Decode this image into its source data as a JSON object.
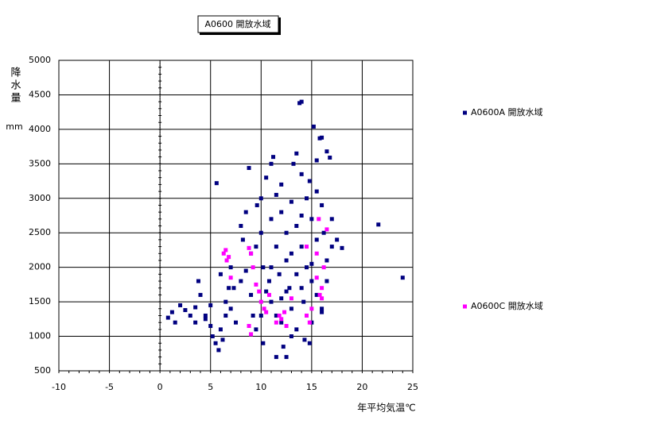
{
  "chart_data": {
    "type": "scatter",
    "title": "A0600 開放水域",
    "x_label": "年平均気温℃",
    "y_label": "降水量",
    "y_unit": "mm",
    "xlim": [
      -10,
      25
    ],
    "ylim": [
      500,
      5000
    ],
    "xticks": [
      -10,
      -5,
      0,
      5,
      10,
      15,
      20,
      25
    ],
    "yticks": [
      500,
      1000,
      1500,
      2000,
      2500,
      3000,
      3500,
      4000,
      4500,
      5000
    ],
    "grid": true,
    "series": [
      {
        "name": "A0600A 開放水域",
        "color": "#000080",
        "x": [
          0.8,
          1.2,
          1.5,
          2.0,
          2.5,
          3,
          3.5,
          3.8,
          4,
          4.5,
          5,
          5.2,
          5.5,
          5.8,
          6,
          6.2,
          6.5,
          5.6,
          6,
          6.5,
          7,
          7.5,
          7.3,
          8,
          8,
          8.2,
          8.5,
          8.8,
          9,
          9,
          9.2,
          9.5,
          9.6,
          10,
          10,
          10.2,
          10.2,
          10.5,
          10.8,
          11,
          11,
          11,
          11.2,
          11.5,
          11.5,
          11.5,
          11.8,
          12,
          12,
          12,
          12.2,
          12.5,
          12.5,
          12.5,
          12.8,
          13,
          13,
          13,
          13.2,
          13.5,
          13.5,
          13.5,
          13.8,
          14,
          14,
          14,
          14,
          14.2,
          14.3,
          14.5,
          14.5,
          14.5,
          14.8,
          15,
          15,
          15,
          15.2,
          15.5,
          15.5,
          15.5,
          15.5,
          15.8,
          16,
          16,
          16,
          16.2,
          16.5,
          16.5,
          16.8,
          17,
          17,
          17.5,
          18,
          21.6,
          24,
          13,
          12.5,
          14,
          10.5,
          11,
          9.5,
          8.5,
          7,
          6.8,
          5,
          4.5,
          3.5,
          16.5,
          15,
          13.5,
          12,
          10,
          11.5,
          14.8,
          16
        ],
        "values": [
          1270,
          1350,
          1200,
          1450,
          1380,
          1300,
          1420,
          1800,
          1600,
          1250,
          1150,
          1000,
          900,
          800,
          1100,
          950,
          1300,
          3220,
          1900,
          1500,
          1400,
          1200,
          1700,
          1800,
          2600,
          2400,
          2800,
          3440,
          2200,
          1600,
          1300,
          1100,
          2900,
          3000,
          2500,
          2000,
          900,
          3300,
          1800,
          3500,
          2700,
          1500,
          3600,
          3050,
          2300,
          700,
          1900,
          2800,
          1200,
          3200,
          850,
          2500,
          2100,
          700,
          1700,
          2950,
          2200,
          1400,
          3500,
          3650,
          2600,
          1100,
          4380,
          4400,
          3350,
          2300,
          1700,
          1500,
          950,
          3000,
          2000,
          1300,
          3250,
          2700,
          1800,
          1200,
          4040,
          3550,
          3100,
          2400,
          1600,
          3870,
          3880,
          2900,
          1400,
          2500,
          3680,
          2100,
          3590,
          2700,
          2300,
          2400,
          2280,
          2620,
          1850,
          1000,
          1650,
          2750,
          1650,
          2000,
          2300,
          1950,
          2000,
          1700,
          1450,
          1300,
          1200,
          1800,
          2050,
          1900,
          1550,
          1300,
          1300,
          900,
          1350
        ]
      },
      {
        "name": "A0600C 開放水域",
        "color": "#ff00ff",
        "x": [
          6.3,
          6.5,
          6.6,
          6.8,
          7,
          8.8,
          9,
          9.2,
          9.5,
          9.8,
          10,
          10.3,
          10.5,
          10.8,
          11.5,
          11.8,
          12,
          12.3,
          8.8,
          9,
          14.5,
          14.8,
          15,
          15.5,
          15.7,
          16,
          16,
          16.2,
          16.5,
          15.8,
          15.5,
          13,
          12.5,
          14.5
        ],
        "values": [
          2200,
          2250,
          2100,
          2150,
          1850,
          2280,
          2200,
          2000,
          1750,
          1650,
          1500,
          1400,
          1350,
          1600,
          1200,
          1300,
          1250,
          1350,
          1150,
          1030,
          1300,
          1200,
          1400,
          2200,
          2700,
          1700,
          1550,
          2000,
          2550,
          1600,
          1850,
          1550,
          1150,
          2300
        ]
      }
    ]
  }
}
